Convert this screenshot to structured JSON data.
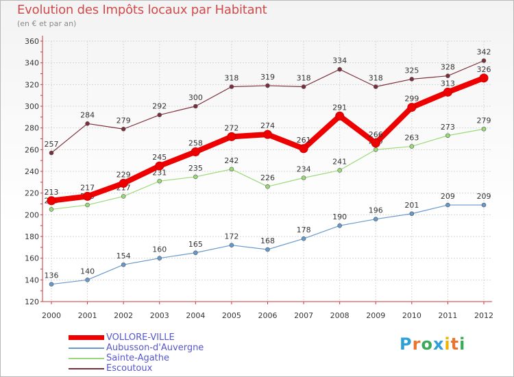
{
  "page": {
    "title": "Evolution des Impôts locaux par Habitant",
    "subtitle": "(en € et par an)"
  },
  "chart_data": {
    "type": "line",
    "title": "Evolution des Impôts locaux par Habitant",
    "subtitle": "(en € et par an)",
    "xlabel": "",
    "ylabel": "",
    "x": [
      2000,
      2001,
      2002,
      2003,
      2004,
      2005,
      2006,
      2007,
      2008,
      2009,
      2010,
      2011,
      2012
    ],
    "ylim": [
      120,
      360
    ],
    "yticks": [
      120,
      140,
      160,
      180,
      200,
      220,
      240,
      260,
      280,
      300,
      320,
      340,
      360
    ],
    "grid": true,
    "legend_position": "bottom-left",
    "series": [
      {
        "name": "Escoutoux",
        "color": "#7a2e3a",
        "values": [
          257,
          284,
          279,
          292,
          300,
          318,
          319,
          318,
          334,
          318,
          325,
          328,
          342
        ]
      },
      {
        "name": "Sainte-Agathe",
        "color": "#99d977",
        "values": [
          205,
          209,
          217,
          231,
          235,
          242,
          226,
          234,
          241,
          260,
          263,
          273,
          279
        ]
      },
      {
        "name": "Aubusson-d'Auvergne",
        "color": "#6699cc",
        "values": [
          136,
          140,
          154,
          160,
          165,
          172,
          168,
          178,
          190,
          196,
          201,
          209,
          209
        ]
      },
      {
        "name": "VOLLORE-VILLE",
        "color": "#ee0000",
        "values": [
          213,
          217,
          229,
          245,
          258,
          272,
          274,
          261,
          291,
          266,
          299,
          313,
          326
        ]
      }
    ]
  },
  "legend": {
    "items": [
      {
        "label": "VOLLORE-VILLE",
        "color": "#ee0000"
      },
      {
        "label": "Aubusson-d'Auvergne",
        "color": "#6699cc"
      },
      {
        "label": "Sainte-Agathe",
        "color": "#99d977"
      },
      {
        "label": "Escoutoux",
        "color": "#7a2e3a"
      }
    ]
  },
  "logo": {
    "letters": [
      "P",
      "r",
      "o",
      "x",
      "i",
      "t",
      "i"
    ],
    "colors": [
      "#2f9fd8",
      "#e9742f",
      "#3aaa5a",
      "#2f9fd8",
      "#f0b400",
      "#e9742f",
      "#3aaa5a"
    ]
  }
}
